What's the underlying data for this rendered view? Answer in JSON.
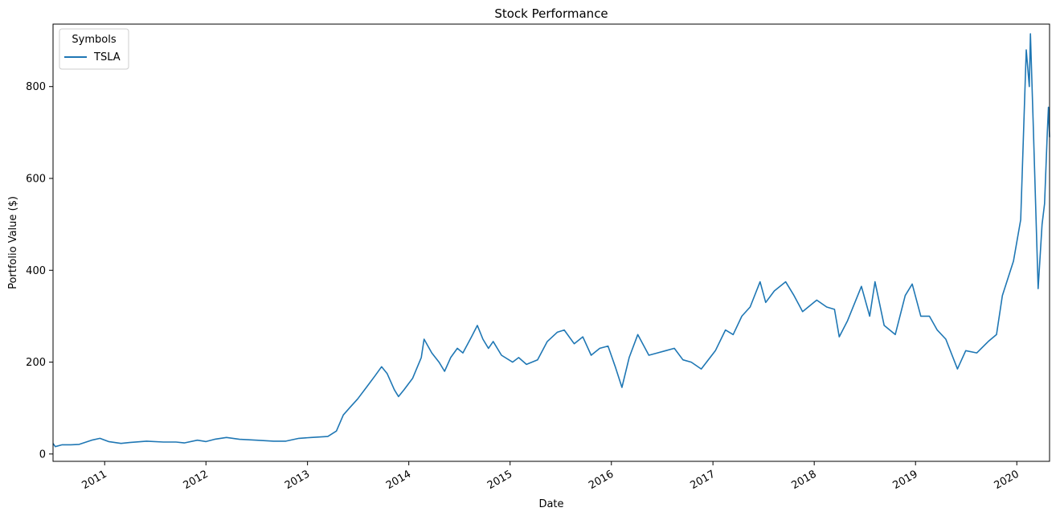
{
  "chart_data": {
    "type": "line",
    "title": "Stock Performance",
    "xlabel": "Date",
    "ylabel": "Portfolio Value ($)",
    "xlim": [
      "2010-06-29",
      "2020-04-28"
    ],
    "ylim": [
      -16,
      936
    ],
    "x_ticks": [
      "2011",
      "2012",
      "2013",
      "2014",
      "2015",
      "2016",
      "2017",
      "2018",
      "2019",
      "2020"
    ],
    "y_ticks": [
      0,
      200,
      400,
      600,
      800
    ],
    "grid": false,
    "legend": {
      "title": "Symbols",
      "placement": "top-left"
    },
    "series": [
      {
        "name": "TSLA",
        "color": "#1f77b4",
        "points": [
          [
            "2010-06-29",
            23
          ],
          [
            "2010-07-07",
            16
          ],
          [
            "2010-08-01",
            20
          ],
          [
            "2010-09-01",
            20
          ],
          [
            "2010-10-01",
            21
          ],
          [
            "2010-11-15",
            30
          ],
          [
            "2010-12-15",
            34
          ],
          [
            "2011-01-15",
            27
          ],
          [
            "2011-03-01",
            23
          ],
          [
            "2011-04-01",
            25
          ],
          [
            "2011-06-01",
            28
          ],
          [
            "2011-08-01",
            26
          ],
          [
            "2011-09-15",
            26
          ],
          [
            "2011-10-15",
            24
          ],
          [
            "2011-12-01",
            30
          ],
          [
            "2012-01-01",
            27
          ],
          [
            "2012-02-01",
            32
          ],
          [
            "2012-03-15",
            36
          ],
          [
            "2012-05-01",
            32
          ],
          [
            "2012-07-01",
            30
          ],
          [
            "2012-09-01",
            28
          ],
          [
            "2012-10-15",
            28
          ],
          [
            "2012-12-01",
            34
          ],
          [
            "2013-01-15",
            36
          ],
          [
            "2013-03-15",
            38
          ],
          [
            "2013-04-15",
            50
          ],
          [
            "2013-05-10",
            85
          ],
          [
            "2013-06-01",
            100
          ],
          [
            "2013-07-01",
            120
          ],
          [
            "2013-08-01",
            145
          ],
          [
            "2013-09-01",
            170
          ],
          [
            "2013-09-25",
            190
          ],
          [
            "2013-10-15",
            175
          ],
          [
            "2013-11-10",
            140
          ],
          [
            "2013-11-25",
            125
          ],
          [
            "2013-12-15",
            140
          ],
          [
            "2014-01-15",
            165
          ],
          [
            "2014-02-15",
            210
          ],
          [
            "2014-02-25",
            250
          ],
          [
            "2014-03-25",
            220
          ],
          [
            "2014-04-20",
            200
          ],
          [
            "2014-05-10",
            180
          ],
          [
            "2014-06-01",
            210
          ],
          [
            "2014-06-25",
            230
          ],
          [
            "2014-07-15",
            220
          ],
          [
            "2014-08-15",
            255
          ],
          [
            "2014-09-05",
            280
          ],
          [
            "2014-09-25",
            250
          ],
          [
            "2014-10-15",
            230
          ],
          [
            "2014-11-01",
            245
          ],
          [
            "2014-12-01",
            215
          ],
          [
            "2015-01-10",
            200
          ],
          [
            "2015-02-01",
            210
          ],
          [
            "2015-03-01",
            195
          ],
          [
            "2015-04-10",
            205
          ],
          [
            "2015-05-15",
            245
          ],
          [
            "2015-06-20",
            265
          ],
          [
            "2015-07-15",
            270
          ],
          [
            "2015-08-20",
            240
          ],
          [
            "2015-09-20",
            255
          ],
          [
            "2015-10-20",
            215
          ],
          [
            "2015-11-20",
            230
          ],
          [
            "2015-12-20",
            235
          ],
          [
            "2016-01-15",
            190
          ],
          [
            "2016-02-08",
            145
          ],
          [
            "2016-03-05",
            210
          ],
          [
            "2016-04-05",
            260
          ],
          [
            "2016-05-15",
            215
          ],
          [
            "2016-06-15",
            220
          ],
          [
            "2016-07-15",
            225
          ],
          [
            "2016-08-15",
            230
          ],
          [
            "2016-09-15",
            205
          ],
          [
            "2016-10-15",
            200
          ],
          [
            "2016-11-20",
            185
          ],
          [
            "2017-01-10",
            225
          ],
          [
            "2017-02-15",
            270
          ],
          [
            "2017-03-15",
            260
          ],
          [
            "2017-04-15",
            300
          ],
          [
            "2017-05-15",
            320
          ],
          [
            "2017-06-20",
            375
          ],
          [
            "2017-07-10",
            330
          ],
          [
            "2017-08-10",
            355
          ],
          [
            "2017-09-20",
            375
          ],
          [
            "2017-10-20",
            345
          ],
          [
            "2017-11-20",
            310
          ],
          [
            "2018-01-10",
            335
          ],
          [
            "2018-02-15",
            320
          ],
          [
            "2018-03-15",
            315
          ],
          [
            "2018-04-01",
            255
          ],
          [
            "2018-05-01",
            290
          ],
          [
            "2018-06-20",
            365
          ],
          [
            "2018-07-20",
            300
          ],
          [
            "2018-08-08",
            375
          ],
          [
            "2018-09-10",
            280
          ],
          [
            "2018-10-20",
            260
          ],
          [
            "2018-11-25",
            345
          ],
          [
            "2018-12-20",
            370
          ],
          [
            "2019-01-20",
            300
          ],
          [
            "2019-02-20",
            300
          ],
          [
            "2019-03-20",
            270
          ],
          [
            "2019-04-20",
            250
          ],
          [
            "2019-06-01",
            185
          ],
          [
            "2019-07-01",
            225
          ],
          [
            "2019-08-10",
            220
          ],
          [
            "2019-09-20",
            245
          ],
          [
            "2019-10-20",
            260
          ],
          [
            "2019-11-10",
            345
          ],
          [
            "2019-12-20",
            420
          ],
          [
            "2020-01-15",
            510
          ],
          [
            "2020-02-04",
            880
          ],
          [
            "2020-02-15",
            800
          ],
          [
            "2020-02-19",
            915
          ],
          [
            "2020-03-01",
            700
          ],
          [
            "2020-03-18",
            360
          ],
          [
            "2020-04-01",
            500
          ],
          [
            "2020-04-10",
            545
          ],
          [
            "2020-04-20",
            700
          ],
          [
            "2020-04-24",
            755
          ],
          [
            "2020-04-28",
            690
          ]
        ]
      }
    ]
  }
}
